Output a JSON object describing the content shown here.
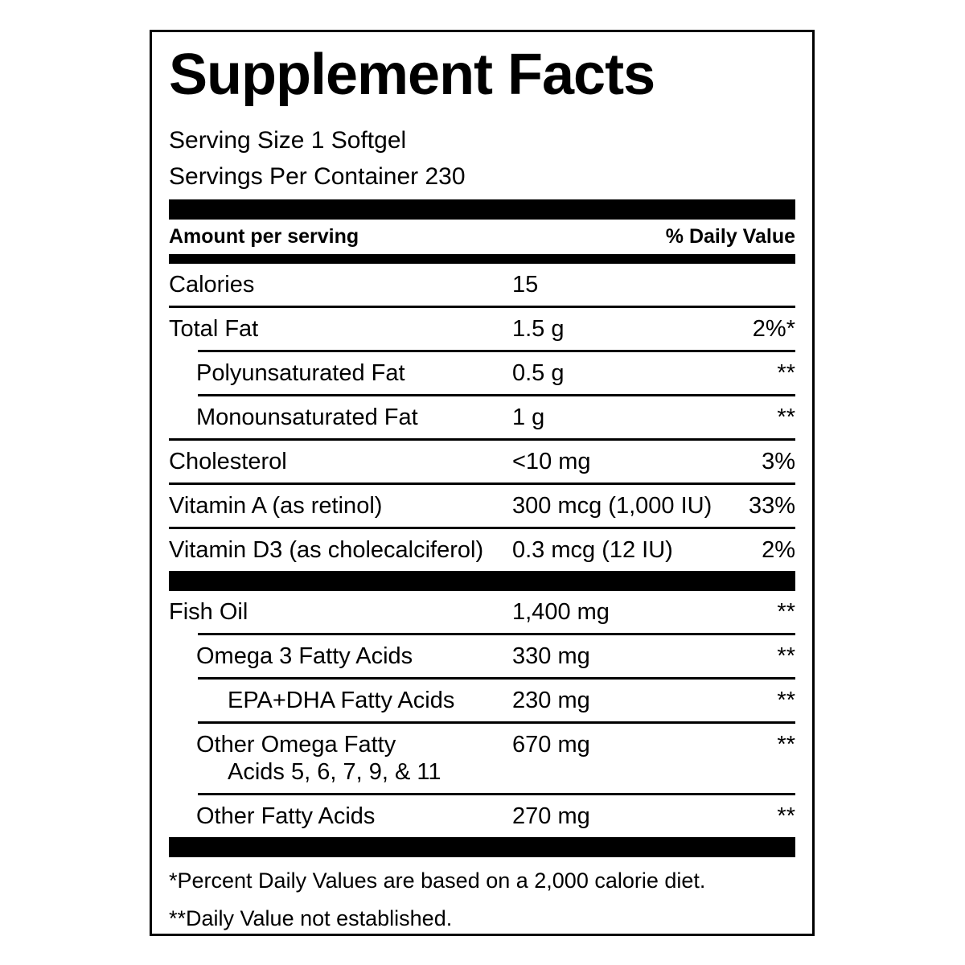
{
  "label": {
    "title": "Supplement Facts",
    "serving_lines": [
      "Serving Size 1 Softgel",
      "Servings Per Container 230"
    ],
    "header": {
      "amount": "Amount per serving",
      "daily_value": "% Daily Value"
    },
    "sections": [
      {
        "rows": [
          {
            "name": "Calories",
            "amount": "15",
            "dv": "",
            "indent": 0,
            "divider": "none"
          },
          {
            "name": "Total Fat",
            "amount": "1.5 g",
            "dv": "2%*",
            "indent": 0,
            "divider": "full"
          },
          {
            "name": "Polyunsaturated Fat",
            "amount": "0.5 g",
            "dv": "**",
            "indent": 1,
            "divider": "indent"
          },
          {
            "name": "Monounsaturated Fat",
            "amount": "1 g",
            "dv": "**",
            "indent": 1,
            "divider": "indent"
          },
          {
            "name": "Cholesterol",
            "amount": "<10 mg",
            "dv": "3%",
            "indent": 0,
            "divider": "full"
          },
          {
            "name": "Vitamin A (as retinol)",
            "amount": "300 mcg (1,000 IU)",
            "dv": "33%",
            "indent": 0,
            "divider": "full"
          },
          {
            "name": "Vitamin D3 (as cholecalciferol)",
            "amount": "0.3 mcg (12 IU)",
            "dv": "2%",
            "indent": 0,
            "divider": "full"
          }
        ]
      },
      {
        "rows": [
          {
            "name": "Fish Oil",
            "amount": "1,400 mg",
            "dv": "**",
            "indent": 0,
            "divider": "none"
          },
          {
            "name": "Omega 3 Fatty Acids",
            "amount": "330 mg",
            "dv": "**",
            "indent": 1,
            "divider": "indent"
          },
          {
            "name": "EPA+DHA Fatty Acids",
            "amount": "230 mg",
            "dv": "**",
            "indent": 2,
            "divider": "indent"
          },
          {
            "name": "Other Omega Fatty",
            "name_line2": "Acids 5, 6, 7, 9, & 11",
            "amount": "670 mg",
            "dv": "**",
            "indent": 1,
            "divider": "indent"
          },
          {
            "name": "Other Fatty Acids",
            "amount": "270 mg",
            "dv": "**",
            "indent": 1,
            "divider": "indent"
          }
        ]
      }
    ],
    "footnotes": [
      "*Percent Daily Values are based on a 2,000 calorie diet.",
      "**Daily Value not established."
    ],
    "colors": {
      "text": "#000000",
      "background": "#ffffff",
      "bar": "#000000"
    }
  }
}
